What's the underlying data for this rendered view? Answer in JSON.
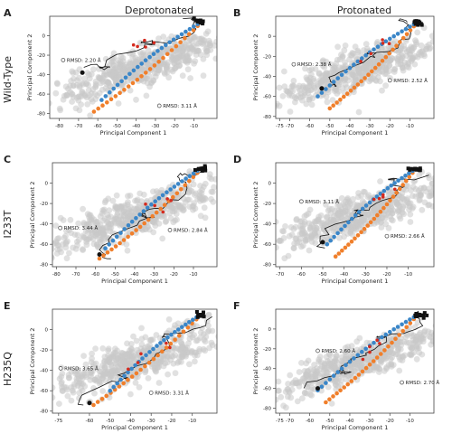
{
  "column_titles": [
    "Deprotonated",
    "Protonated"
  ],
  "row_titles": [
    "Wild-Type",
    "I233T",
    "H235Q"
  ],
  "xlabel": "Principal Component 1",
  "ylabel": "Principal Component 2",
  "colors": {
    "cloud": "#c8c8c8",
    "blue": "#3a86c8",
    "orange": "#f07f2b",
    "red": "#d42a1e",
    "black": "#111111",
    "axis": "#444444"
  },
  "chart_data": [
    {
      "panel": "A",
      "type": "scatter",
      "xlabel": "Principal Component 1",
      "ylabel": "Principal Component 2",
      "xlim": [
        -85,
        2
      ],
      "ylim": [
        -85,
        20
      ],
      "xticks": [
        -80,
        -70,
        -60,
        -50,
        -40,
        -30,
        -20,
        -10
      ],
      "yticks": [
        -80,
        -60,
        -40,
        -20,
        0
      ],
      "cloud": {
        "center": [
          -37,
          -32
        ],
        "length": 55,
        "width": 16,
        "angle": 38
      },
      "blue_path": {
        "start": [
          -58,
          -66
        ],
        "end": [
          -8,
          12
        ]
      },
      "orange_path": {
        "start": [
          -62,
          -78
        ],
        "end": [
          -8,
          10
        ]
      },
      "black_path_start": [
        -68,
        -38
      ],
      "black_path_end": [
        -7,
        14
      ],
      "annotations": [
        {
          "text": "RMSD: 2.20 Å",
          "x": -78,
          "y": -25
        },
        {
          "text": "RMSD: 3.11 Å",
          "x": -28,
          "y": -72
        }
      ]
    },
    {
      "panel": "B",
      "type": "scatter",
      "xlabel": "Principal Component 1",
      "ylabel": "Principal Component 2",
      "xlim": [
        -77,
        2
      ],
      "ylim": [
        -82,
        20
      ],
      "xticks": [
        -75,
        -70,
        -60,
        -50,
        -40,
        -30,
        -20,
        -10
      ],
      "yticks": [
        -80,
        -60,
        -40,
        -20,
        0
      ],
      "cloud": {
        "center": [
          -35,
          -33
        ],
        "length": 52,
        "width": 15,
        "angle": 38
      },
      "blue_path": {
        "start": [
          -56,
          -60
        ],
        "end": [
          -8,
          12
        ]
      },
      "orange_path": {
        "start": [
          -50,
          -72
        ],
        "end": [
          -8,
          10
        ]
      },
      "black_path_start": [
        -54,
        -52
      ],
      "black_path_end": [
        -6,
        14
      ],
      "annotations": [
        {
          "text": "RMSD: 2.38 Å",
          "x": -68,
          "y": -28
        },
        {
          "text": "RMSD: 2.52 Å",
          "x": -20,
          "y": -44
        }
      ]
    },
    {
      "panel": "C",
      "type": "scatter",
      "xlabel": "Principal Component 1",
      "ylabel": "Principal Component 2",
      "xlim": [
        -82,
        2
      ],
      "ylim": [
        -82,
        20
      ],
      "xticks": [
        -80,
        -70,
        -60,
        -50,
        -40,
        -30,
        -20,
        -10
      ],
      "yticks": [
        -80,
        -60,
        -40,
        -20,
        0
      ],
      "cloud": {
        "center": [
          -38,
          -32
        ],
        "length": 53,
        "width": 17,
        "angle": 38
      },
      "blue_path": {
        "start": [
          -55,
          -64
        ],
        "end": [
          -8,
          12
        ]
      },
      "orange_path": {
        "start": [
          -58,
          -74
        ],
        "end": [
          -8,
          10
        ]
      },
      "black_path_start": [
        -58,
        -70
      ],
      "black_path_end": [
        -6,
        14
      ],
      "annotations": [
        {
          "text": "RMSD: 3.44 Å",
          "x": -78,
          "y": -44
        },
        {
          "text": "RMSD: 2.84 Å",
          "x": -22,
          "y": -46
        }
      ]
    },
    {
      "panel": "D",
      "type": "scatter",
      "xlabel": "Principal Component 1",
      "ylabel": "Principal Component 2",
      "xlim": [
        -72,
        2
      ],
      "ylim": [
        -82,
        20
      ],
      "xticks": [
        -70,
        -60,
        -50,
        -40,
        -30,
        -20,
        -10
      ],
      "yticks": [
        -80,
        -60,
        -40,
        -20,
        0
      ],
      "cloud": {
        "center": [
          -33,
          -32
        ],
        "length": 50,
        "width": 15,
        "angle": 38
      },
      "blue_path": {
        "start": [
          -48,
          -60
        ],
        "end": [
          -8,
          12
        ]
      },
      "orange_path": {
        "start": [
          -44,
          -72
        ],
        "end": [
          -8,
          10
        ]
      },
      "black_path_start": [
        -50,
        -58
      ],
      "black_path_end": [
        -6,
        14
      ],
      "annotations": [
        {
          "text": "RMSD: 3.11 Å",
          "x": -60,
          "y": -18
        },
        {
          "text": "RMSD: 2.66 Å",
          "x": -20,
          "y": -52
        }
      ]
    },
    {
      "panel": "E",
      "type": "scatter",
      "xlabel": "Principal Component 1",
      "ylabel": "Principal Component 2",
      "xlim": [
        -78,
        2
      ],
      "ylim": [
        -82,
        20
      ],
      "xticks": [
        -75,
        -60,
        -50,
        -40,
        -30,
        -20,
        -10
      ],
      "yticks": [
        -80,
        -60,
        -40,
        -20,
        0
      ],
      "cloud": {
        "center": [
          -36,
          -30
        ],
        "length": 54,
        "width": 17,
        "angle": 38
      },
      "blue_path": {
        "start": [
          -50,
          -60
        ],
        "end": [
          -8,
          12
        ]
      },
      "orange_path": {
        "start": [
          -58,
          -74
        ],
        "end": [
          -8,
          10
        ]
      },
      "black_path_start": [
        -60,
        -72
      ],
      "black_path_end": [
        -6,
        14
      ],
      "annotations": [
        {
          "text": "RMSD: 3.65 Å",
          "x": -74,
          "y": -38
        },
        {
          "text": "RMSD: 3.31 Å",
          "x": -30,
          "y": -62
        }
      ]
    },
    {
      "panel": "F",
      "type": "scatter",
      "xlabel": "Principal Component 1",
      "ylabel": "Principal Component 2",
      "xlim": [
        -77,
        2
      ],
      "ylim": [
        -85,
        20
      ],
      "xticks": [
        -75,
        -70,
        -60,
        -50,
        -40,
        -30,
        -20,
        -10
      ],
      "yticks": [
        -80,
        -60,
        -40,
        -20,
        0
      ],
      "cloud": {
        "center": [
          -35,
          -33
        ],
        "length": 52,
        "width": 15,
        "angle": 38
      },
      "blue_path": {
        "start": [
          -56,
          -62
        ],
        "end": [
          -8,
          12
        ]
      },
      "orange_path": {
        "start": [
          -52,
          -74
        ],
        "end": [
          -8,
          10
        ]
      },
      "black_path_start": [
        -56,
        -60
      ],
      "black_path_end": [
        -6,
        14
      ],
      "annotations": [
        {
          "text": "RMSD: 2.60 Å",
          "x": -56,
          "y": -22
        },
        {
          "text": "RMSD: 2.70 Å",
          "x": -14,
          "y": -54
        }
      ]
    }
  ]
}
